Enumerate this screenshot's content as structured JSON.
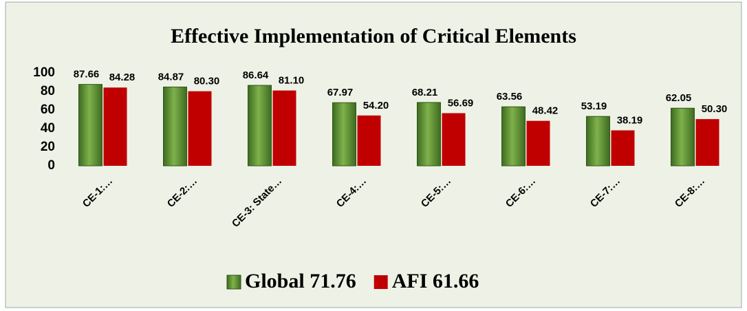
{
  "chart_data": {
    "type": "bar",
    "title": "Effective Implementation  of Critical Elements",
    "categories": [
      "CE-1:…",
      "CE-2:…",
      "CE-3: State…",
      "CE-4:…",
      "CE-5:…",
      "CE-6:…",
      "CE-7:…",
      "CE-8:…"
    ],
    "series": [
      {
        "name": "Global 71.76",
        "color": "#5a8a32",
        "values": [
          87.66,
          84.87,
          86.64,
          67.97,
          68.21,
          63.56,
          53.19,
          62.05
        ],
        "value_labels": [
          "87.66",
          "84.87",
          "86.64",
          "67.97",
          "68.21",
          "63.56",
          "53.19",
          "62.05"
        ]
      },
      {
        "name": "AFI 61.66",
        "color": "#c00000",
        "values": [
          84.28,
          80.3,
          81.1,
          54.2,
          56.69,
          48.42,
          38.19,
          50.3
        ],
        "value_labels": [
          "84.28",
          "80.30",
          "81.10",
          "54.20",
          "56.69",
          "48.42",
          "38.19",
          "50.30"
        ]
      }
    ],
    "ylim": [
      0,
      100
    ],
    "yticks": [
      0,
      20,
      40,
      60,
      80,
      100
    ],
    "legend": "bottom"
  }
}
